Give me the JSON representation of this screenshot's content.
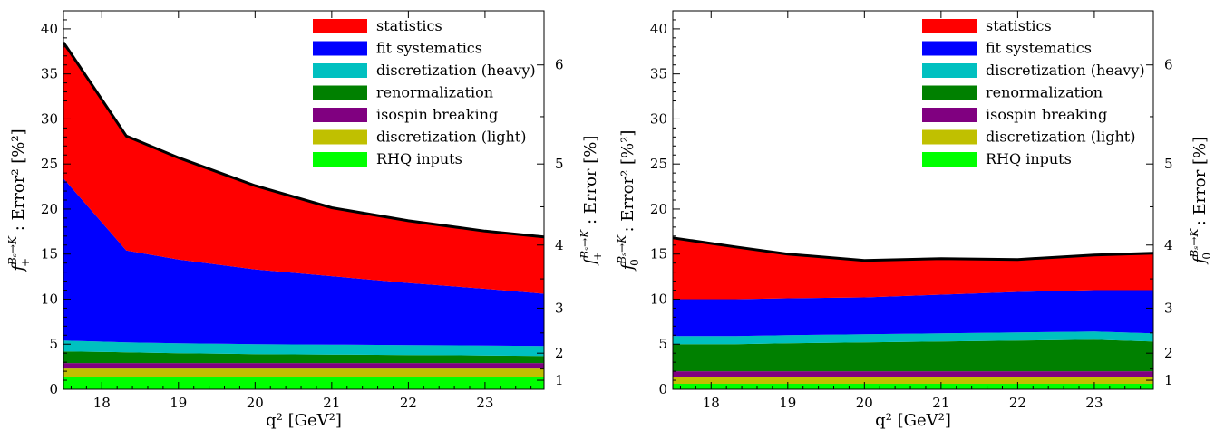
{
  "chart_data": [
    {
      "type": "area",
      "x": [
        17.5,
        18.32,
        19,
        20,
        21,
        22,
        23,
        23.77
      ],
      "xlim": [
        17.5,
        23.77
      ],
      "ylim": [
        0,
        42
      ],
      "xticks": [
        "18",
        "19",
        "20",
        "21",
        "22",
        "23"
      ],
      "yticks": [
        "0",
        "5",
        "10",
        "15",
        "20",
        "25",
        "30",
        "35",
        "40"
      ],
      "right_ticks": [
        "1",
        "2",
        "3",
        "4",
        "5",
        "6"
      ],
      "xlabel": "q² [GeV²]",
      "ylabel_main": "f",
      "ylabel_sup": "Bₛ→K",
      "ylabel_sub": "+",
      "ylabel_rest": " : Error² [%²]",
      "ylabel2_main": "f",
      "ylabel2_sup": "Bₛ→K",
      "ylabel2_sub": "+",
      "ylabel2_rest": " : Error [%]",
      "legend_position": "top-right",
      "series": [
        {
          "name": "RHQ inputs",
          "color": "#00ff00",
          "values": [
            1.4,
            1.4,
            1.4,
            1.4,
            1.4,
            1.4,
            1.4,
            1.4
          ]
        },
        {
          "name": "discretization (light)",
          "color": "#c0c000",
          "values": [
            0.9,
            0.9,
            0.9,
            0.9,
            0.9,
            0.9,
            0.9,
            0.9
          ]
        },
        {
          "name": "isospin breaking",
          "color": "#800080",
          "values": [
            0.6,
            0.6,
            0.6,
            0.6,
            0.6,
            0.6,
            0.6,
            0.6
          ]
        },
        {
          "name": "renormalization",
          "color": "#008000",
          "values": [
            1.3,
            1.2,
            1.1,
            1.0,
            0.95,
            0.9,
            0.85,
            0.8
          ]
        },
        {
          "name": "discretization (heavy)",
          "color": "#00c0c0",
          "values": [
            1.2,
            1.1,
            1.1,
            1.1,
            1.1,
            1.1,
            1.1,
            1.1
          ]
        },
        {
          "name": "fit systematics",
          "color": "#0000ff",
          "values": [
            18.0,
            10.2,
            9.3,
            8.3,
            7.6,
            6.9,
            6.3,
            5.8
          ]
        },
        {
          "name": "statistics",
          "color": "#ff0000",
          "values": [
            15.1,
            12.7,
            11.3,
            9.3,
            7.6,
            6.9,
            6.4,
            6.3
          ]
        }
      ]
    },
    {
      "type": "area",
      "x": [
        17.5,
        18.32,
        19,
        20,
        21,
        22,
        23,
        23.77
      ],
      "xlim": [
        17.5,
        23.77
      ],
      "ylim": [
        0,
        42
      ],
      "xticks": [
        "18",
        "19",
        "20",
        "21",
        "22",
        "23"
      ],
      "yticks": [
        "0",
        "5",
        "10",
        "15",
        "20",
        "25",
        "30",
        "35",
        "40"
      ],
      "right_ticks": [
        "1",
        "2",
        "3",
        "4",
        "5",
        "6"
      ],
      "xlabel": "q² [GeV²]",
      "ylabel_main": "f",
      "ylabel_sup": "Bₛ→K",
      "ylabel_sub": "0",
      "ylabel_rest": " : Error² [%²]",
      "ylabel2_main": "f",
      "ylabel2_sup": "Bₛ→K",
      "ylabel2_sub": "0",
      "ylabel2_rest": " : Error [%]",
      "legend_position": "top-right",
      "series": [
        {
          "name": "RHQ inputs",
          "color": "#00ff00",
          "values": [
            0.6,
            0.6,
            0.6,
            0.6,
            0.6,
            0.6,
            0.6,
            0.6
          ]
        },
        {
          "name": "discretization (light)",
          "color": "#c0c000",
          "values": [
            0.8,
            0.8,
            0.8,
            0.8,
            0.8,
            0.8,
            0.8,
            0.8
          ]
        },
        {
          "name": "isospin breaking",
          "color": "#800080",
          "values": [
            0.6,
            0.6,
            0.6,
            0.6,
            0.6,
            0.6,
            0.6,
            0.6
          ]
        },
        {
          "name": "renormalization",
          "color": "#008000",
          "values": [
            3.0,
            3.0,
            3.1,
            3.2,
            3.3,
            3.4,
            3.5,
            3.3
          ]
        },
        {
          "name": "discretization (heavy)",
          "color": "#00c0c0",
          "values": [
            0.9,
            0.9,
            0.9,
            0.9,
            0.9,
            0.9,
            0.9,
            0.9
          ]
        },
        {
          "name": "fit systematics",
          "color": "#0000ff",
          "values": [
            4.1,
            4.1,
            4.1,
            4.1,
            4.3,
            4.5,
            4.6,
            4.8
          ]
        },
        {
          "name": "statistics",
          "color": "#ff0000",
          "values": [
            6.8,
            5.8,
            4.9,
            4.1,
            4.0,
            3.6,
            3.9,
            4.1
          ]
        }
      ]
    }
  ]
}
